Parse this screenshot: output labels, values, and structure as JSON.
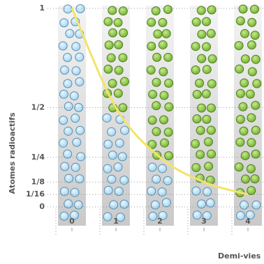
{
  "chart_data": {
    "type": "line",
    "x_label": "Demi-vies",
    "y_label": "Atomes radioactifs",
    "x": [
      0,
      1,
      2,
      3,
      4
    ],
    "series": [
      {
        "name": "Atomes radioactifs",
        "color": "#f3e36a",
        "values": [
          1,
          0.5,
          0.25,
          0.125,
          0.0625
        ]
      }
    ],
    "xlim": [
      0,
      4
    ],
    "xticks": [
      0,
      1,
      2,
      3,
      4
    ],
    "ylim": [
      0,
      1
    ],
    "yticks": [
      0,
      {
        "value": 0.0625,
        "label": "1/16"
      },
      {
        "value": 0.125,
        "label": "1/8"
      },
      {
        "value": 0.25,
        "label": "1/4"
      },
      {
        "value": 0.5,
        "label": "1/2"
      },
      1
    ],
    "grid": true
  }
}
